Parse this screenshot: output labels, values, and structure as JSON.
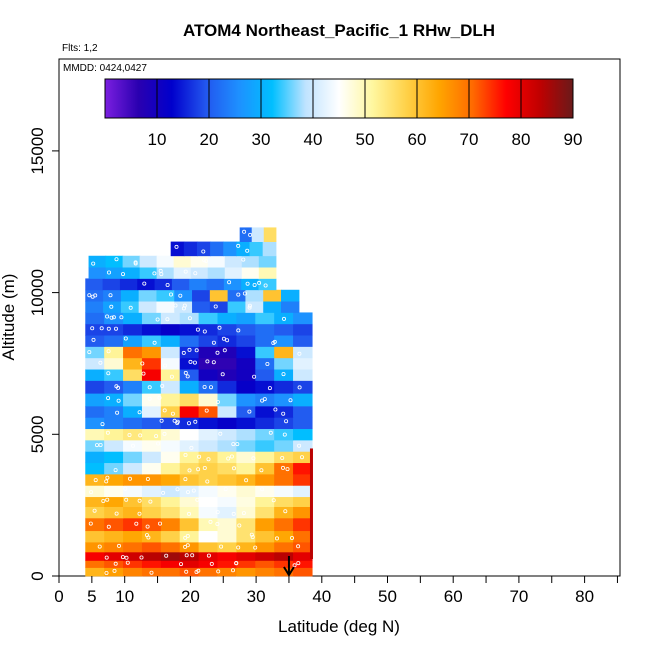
{
  "chart_data": {
    "type": "heatmap",
    "title": "ATOM4 Northeast_Pacific_1 RHw_DLH",
    "subtitle_flights": "Flts: 1,2",
    "subtitle_dates": "MMDD: 0424,0427",
    "xlabel": "Latitude (deg N)",
    "ylabel": "Altitude (m)",
    "xlim": [
      0,
      85
    ],
    "ylim": [
      0,
      18000
    ],
    "x_ticks": [
      0,
      5,
      10,
      20,
      30,
      40,
      50,
      60,
      70,
      80
    ],
    "y_ticks": [
      0,
      5000,
      10000,
      15000
    ],
    "colorbar": {
      "min": 0,
      "max": 90,
      "ticks": [
        10,
        20,
        30,
        40,
        50,
        60,
        70,
        80,
        90
      ],
      "colors": [
        "#7b1fe0",
        "#2a00b0",
        "#0000cc",
        "#2255ee",
        "#1e90ff",
        "#00bfff",
        "#bfe3ff",
        "#ffffff",
        "#fff7a0",
        "#ffd24a",
        "#ffa500",
        "#ff6a00",
        "#ff0000",
        "#c00000",
        "#6a1a1a"
      ]
    },
    "arrow_at_latitude": 35,
    "bands": [
      {
        "alt0": 0,
        "alt1": 300,
        "x0": 4,
        "x1": 38.5,
        "values": [
          62,
          65,
          68,
          70,
          70,
          72,
          70,
          68,
          66,
          68,
          70,
          72
        ]
      },
      {
        "alt0": 300,
        "alt1": 550,
        "x0": 4,
        "x1": 38.5,
        "values": [
          70,
          72,
          74,
          76,
          78,
          80,
          78,
          76,
          74,
          72,
          74,
          76
        ]
      },
      {
        "alt0": 550,
        "alt1": 850,
        "x0": 4,
        "x1": 38.5,
        "values": [
          78,
          80,
          82,
          84,
          86,
          84,
          80,
          78,
          80,
          82,
          84,
          80
        ]
      },
      {
        "alt0": 850,
        "alt1": 1200,
        "x0": 4,
        "x1": 38.5,
        "values": [
          66,
          68,
          70,
          72,
          70,
          66,
          60,
          58,
          62,
          66,
          70,
          72
        ]
      },
      {
        "alt0": 1200,
        "alt1": 1600,
        "x0": 4,
        "x1": 38.5,
        "values": [
          60,
          62,
          64,
          62,
          58,
          52,
          45,
          48,
          55,
          60,
          64,
          70
        ]
      },
      {
        "alt0": 1600,
        "alt1": 2050,
        "x0": 4,
        "x1": 38.5,
        "values": [
          70,
          72,
          74,
          72,
          68,
          60,
          50,
          48,
          55,
          65,
          70,
          74
        ]
      },
      {
        "alt0": 2050,
        "alt1": 2450,
        "x0": 4,
        "x1": 38.5,
        "values": [
          58,
          60,
          62,
          58,
          55,
          50,
          44,
          42,
          48,
          55,
          62,
          66
        ]
      },
      {
        "alt0": 2450,
        "alt1": 2800,
        "x0": 4,
        "x1": 38.5,
        "values": [
          62,
          64,
          60,
          56,
          52,
          48,
          45,
          44,
          47,
          52,
          56,
          58
        ]
      },
      {
        "alt0": 2800,
        "alt1": 3200,
        "x0": 4,
        "x1": 38.5,
        "values": [
          48,
          46,
          44,
          42,
          40,
          42,
          44,
          46,
          48,
          46,
          44,
          42
        ]
      },
      {
        "alt0": 3200,
        "alt1": 3600,
        "x0": 4,
        "x1": 38.5,
        "values": [
          62,
          64,
          66,
          66,
          64,
          60,
          58,
          60,
          62,
          66,
          70,
          74
        ]
      },
      {
        "alt0": 3600,
        "alt1": 4000,
        "x0": 4,
        "x1": 38.5,
        "values": [
          32,
          36,
          40,
          46,
          52,
          56,
          58,
          56,
          52,
          60,
          70,
          76
        ]
      },
      {
        "alt0": 4000,
        "alt1": 4400,
        "x0": 4,
        "x1": 38.5,
        "values": [
          30,
          32,
          36,
          40,
          46,
          52,
          56,
          52,
          48,
          52,
          56,
          58
        ]
      },
      {
        "alt0": 4400,
        "alt1": 4800,
        "x0": 4,
        "x1": 38.5,
        "values": [
          36,
          40,
          44,
          46,
          44,
          42,
          40,
          38,
          36,
          34,
          36,
          40
        ]
      },
      {
        "alt0": 4800,
        "alt1": 5200,
        "x0": 4,
        "x1": 38.5,
        "values": [
          50,
          52,
          54,
          52,
          48,
          45,
          42,
          40,
          38,
          36,
          34,
          32
        ]
      },
      {
        "alt0": 5200,
        "alt1": 5600,
        "x0": 4,
        "x1": 38.5,
        "values": [
          26,
          24,
          22,
          20,
          18,
          16,
          14,
          12,
          14,
          16,
          18,
          20
        ]
      },
      {
        "alt0": 5600,
        "alt1": 6000,
        "x0": 4,
        "x1": 38.5,
        "values": [
          22,
          24,
          30,
          42,
          58,
          78,
          72,
          40,
          20,
          14,
          16,
          20
        ]
      },
      {
        "alt0": 6000,
        "alt1": 6450,
        "x0": 4,
        "x1": 38.5,
        "values": [
          28,
          30,
          36,
          46,
          52,
          56,
          48,
          36,
          26,
          24,
          26,
          30
        ]
      },
      {
        "alt0": 6450,
        "alt1": 6900,
        "x0": 4,
        "x1": 38.5,
        "values": [
          18,
          20,
          24,
          34,
          40,
          30,
          22,
          16,
          12,
          14,
          16,
          18
        ]
      },
      {
        "alt0": 6900,
        "alt1": 7300,
        "x0": 4,
        "x1": 38.5,
        "values": [
          30,
          34,
          56,
          78,
          52,
          20,
          10,
          8,
          10,
          20,
          30,
          40
        ]
      },
      {
        "alt0": 7300,
        "alt1": 7700,
        "x0": 4,
        "x1": 38.5,
        "values": [
          40,
          48,
          62,
          74,
          44,
          14,
          6,
          6,
          10,
          22,
          36,
          42
        ]
      },
      {
        "alt0": 7700,
        "alt1": 8100,
        "x0": 4,
        "x1": 38.5,
        "values": [
          36,
          52,
          70,
          66,
          40,
          16,
          8,
          8,
          14,
          34,
          62,
          40
        ]
      },
      {
        "alt0": 8100,
        "alt1": 8500,
        "x0": 4,
        "x1": 38.5,
        "values": [
          20,
          22,
          28,
          34,
          30,
          22,
          18,
          16,
          18,
          22,
          26,
          20
        ]
      },
      {
        "alt0": 8500,
        "alt1": 8900,
        "x0": 4,
        "x1": 38.5,
        "values": [
          18,
          18,
          16,
          14,
          12,
          14,
          16,
          18,
          20,
          22,
          20,
          18
        ]
      },
      {
        "alt0": 8900,
        "alt1": 9300,
        "x0": 4,
        "x1": 38.5,
        "values": [
          22,
          26,
          30,
          36,
          40,
          38,
          34,
          30,
          28,
          34,
          30,
          26
        ]
      },
      {
        "alt0": 9300,
        "alt1": 9700,
        "x0": 4,
        "x1": 36.5,
        "values": [
          24,
          28,
          34,
          40,
          44,
          40,
          20,
          18,
          34,
          40,
          30,
          24
        ]
      },
      {
        "alt0": 9700,
        "alt1": 10100,
        "x0": 4,
        "x1": 36.5,
        "values": [
          22,
          24,
          30,
          36,
          34,
          26,
          18,
          60,
          22,
          38,
          60,
          30
        ]
      },
      {
        "alt0": 10100,
        "alt1": 10500,
        "x0": 4,
        "x1": 33,
        "values": [
          20,
          18,
          16,
          14,
          16,
          20,
          24,
          22,
          26,
          30,
          34
        ]
      },
      {
        "alt0": 10500,
        "alt1": 10900,
        "x0": 4.5,
        "x1": 33,
        "values": [
          26,
          28,
          30,
          34,
          38,
          42,
          40,
          38,
          42,
          46,
          50
        ]
      },
      {
        "alt0": 10900,
        "alt1": 11300,
        "x0": 4.5,
        "x1": 33,
        "values": [
          30,
          32,
          36,
          40,
          44,
          48,
          46,
          44,
          40,
          38,
          36
        ]
      },
      {
        "alt0": 11300,
        "alt1": 11800,
        "x0": 17,
        "x1": 33,
        "values": [
          14,
          16,
          18,
          22,
          26,
          30,
          34,
          38
        ]
      },
      {
        "alt0": 11800,
        "alt1": 12300,
        "x0": 27.5,
        "x1": 33,
        "values": [
          22,
          40,
          56
        ]
      }
    ]
  }
}
